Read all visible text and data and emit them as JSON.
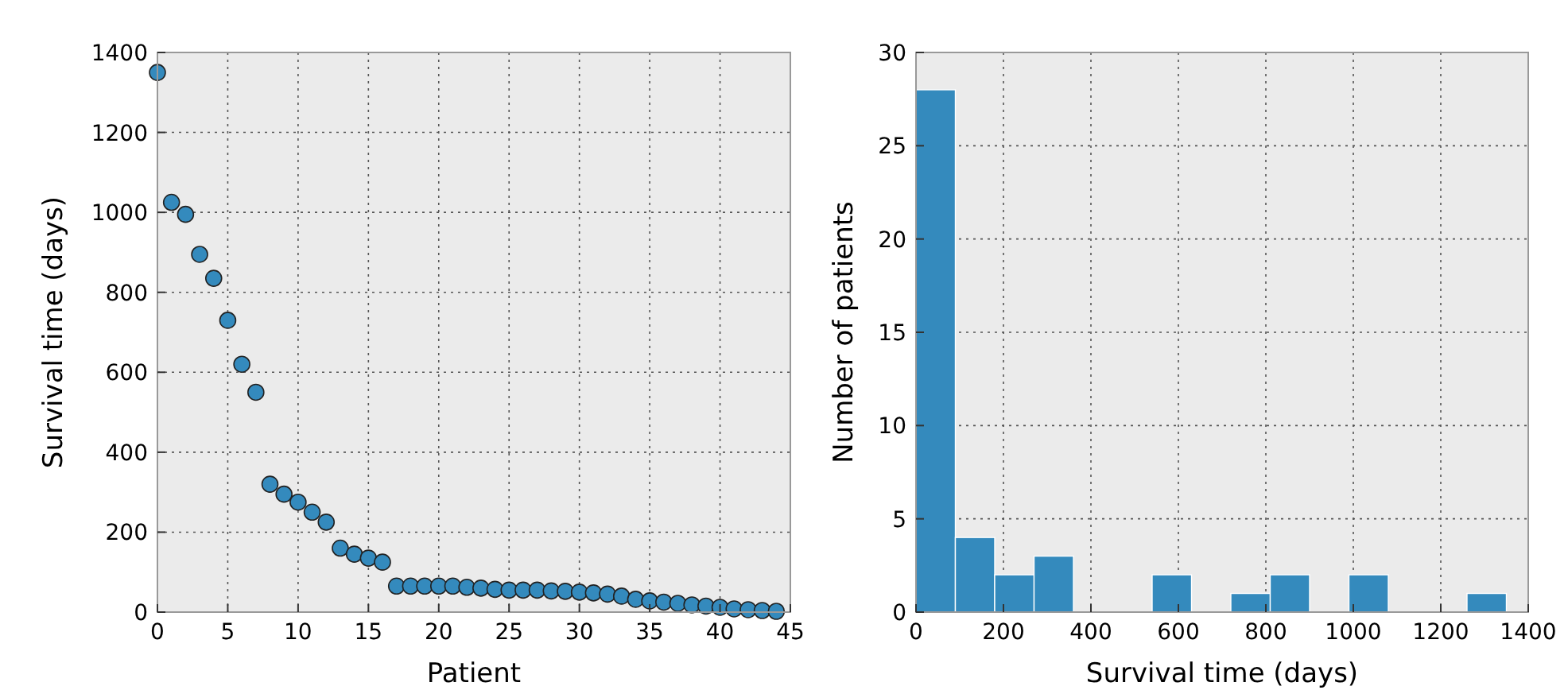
{
  "chart_data": [
    {
      "type": "scatter",
      "xlabel": "Patient",
      "ylabel": "Survival time (days)",
      "x": [
        0,
        1,
        2,
        3,
        4,
        5,
        6,
        7,
        8,
        9,
        10,
        11,
        12,
        13,
        14,
        15,
        16,
        17,
        18,
        19,
        20,
        21,
        22,
        23,
        24,
        25,
        26,
        27,
        28,
        29,
        30,
        31,
        32,
        33,
        34,
        35,
        36,
        37,
        38,
        39,
        40,
        41,
        42,
        43,
        44
      ],
      "series": [
        {
          "color": "#348abd",
          "values": [
            1350,
            1025,
            995,
            895,
            835,
            730,
            620,
            550,
            320,
            295,
            275,
            250,
            225,
            160,
            145,
            135,
            125,
            65,
            65,
            65,
            65,
            65,
            62,
            60,
            57,
            55,
            55,
            55,
            53,
            52,
            50,
            48,
            45,
            40,
            32,
            28,
            25,
            22,
            18,
            15,
            12,
            8,
            6,
            4,
            2
          ]
        }
      ],
      "xlim": [
        0,
        45
      ],
      "xticks": [
        0,
        5,
        10,
        15,
        20,
        25,
        30,
        35,
        40,
        45
      ],
      "ylim": [
        0,
        1400
      ],
      "yticks": [
        0,
        200,
        400,
        600,
        800,
        1000,
        1200,
        1400
      ],
      "grid": true,
      "marker": "circle"
    },
    {
      "type": "histogram",
      "xlabel": "Survival time (days)",
      "ylabel": "Number of patients",
      "bins": [
        0,
        90,
        180,
        270,
        360,
        450,
        540,
        630,
        720,
        810,
        900,
        990,
        1080,
        1170,
        1260,
        1350
      ],
      "values": [
        28,
        4,
        2,
        3,
        0,
        0,
        2,
        0,
        1,
        2,
        0,
        2,
        0,
        0,
        1
      ],
      "color": "#348abd",
      "xlim": [
        0,
        1400
      ],
      "xticks": [
        0,
        200,
        400,
        600,
        800,
        1000,
        1200,
        1400
      ],
      "ylim": [
        0,
        30
      ],
      "yticks": [
        0,
        5,
        10,
        15,
        20,
        25,
        30
      ],
      "grid": true
    }
  ]
}
